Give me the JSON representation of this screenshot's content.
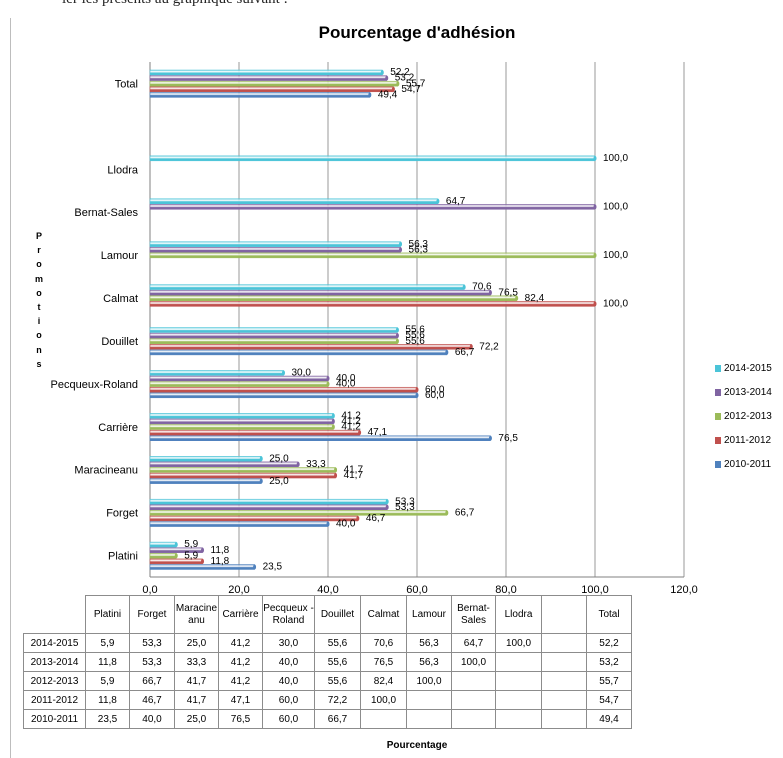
{
  "top_text": "ier les présents au graphique suivant :",
  "chart_data": {
    "type": "bar",
    "orientation": "horizontal",
    "title": "Pourcentage d'adhésion",
    "xlabel": "Pourcentage",
    "ylabel": "Promotions",
    "xlim": [
      0,
      120
    ],
    "x_ticks": [
      "0,0",
      "20,0",
      "40,0",
      "60,0",
      "80,0",
      "100,0",
      "120,0"
    ],
    "grid": true,
    "legend_position": "right",
    "categories": [
      "Total",
      "",
      "Llodra",
      "Bernat-Sales",
      "Lamour",
      "Calmat",
      "Douillet",
      "Pecqueux-Roland",
      "Carrière",
      "Maracineanu",
      "Forget",
      "Platini"
    ],
    "series": [
      {
        "name": "2014-2015",
        "color": "#4bc4d8",
        "values": [
          52.2,
          null,
          100.0,
          64.7,
          56.3,
          70.6,
          55.6,
          30.0,
          41.2,
          25.0,
          53.3,
          5.9
        ],
        "labels": [
          "52,2",
          "",
          "100,0",
          "64,7",
          "56,3",
          "70,6",
          "55,6",
          "30,0",
          "41,2",
          "25,0",
          "53,3",
          "5,9"
        ]
      },
      {
        "name": "2013-2014",
        "color": "#8064a2",
        "values": [
          53.2,
          null,
          null,
          100.0,
          56.3,
          76.5,
          55.6,
          40.0,
          41.2,
          33.3,
          53.3,
          11.8
        ],
        "labels": [
          "53,2",
          "",
          "",
          "100,0",
          "56,3",
          "76,5",
          "55,6",
          "40,0",
          "41,2",
          "33,3",
          "53,3",
          "11,8"
        ]
      },
      {
        "name": "2012-2013",
        "color": "#9bbb59",
        "values": [
          55.7,
          null,
          null,
          null,
          100.0,
          82.4,
          55.6,
          40.0,
          41.2,
          41.7,
          66.7,
          5.9
        ],
        "labels": [
          "55,7",
          "",
          "",
          "",
          "100,0",
          "82,4",
          "55,6",
          "40,0",
          "41,2",
          "41,7",
          "66,7",
          "5,9"
        ]
      },
      {
        "name": "2011-2012",
        "color": "#c0504d",
        "values": [
          54.7,
          null,
          null,
          null,
          null,
          100.0,
          72.2,
          60.0,
          47.1,
          41.7,
          46.7,
          11.8
        ],
        "labels": [
          "54,7",
          "",
          "",
          "",
          "",
          "100,0",
          "72,2",
          "60,0",
          "47,1",
          "41,7",
          "46,7",
          "11,8"
        ]
      },
      {
        "name": "2010-2011",
        "color": "#4f81bd",
        "values": [
          49.4,
          null,
          null,
          null,
          null,
          null,
          66.7,
          60.0,
          76.5,
          25.0,
          40.0,
          23.5
        ],
        "labels": [
          "49,4",
          "",
          "",
          "",
          "",
          "",
          "66,7",
          "60,0",
          "76,5",
          "25,0",
          "40,0",
          "23,5"
        ]
      }
    ]
  },
  "table": {
    "columns": [
      "Platini",
      "Forget",
      "Maracine anu",
      "Carrière",
      "Pecqueux -Roland",
      "Douillet",
      "Calmat",
      "Lamour",
      "Bernat- Sales",
      "Llodra",
      "",
      "Total"
    ],
    "rows": [
      {
        "label": "2014-2015",
        "cells": [
          "5,9",
          "53,3",
          "25,0",
          "41,2",
          "30,0",
          "55,6",
          "70,6",
          "56,3",
          "64,7",
          "100,0",
          "",
          "52,2"
        ]
      },
      {
        "label": "2013-2014",
        "cells": [
          "11,8",
          "53,3",
          "33,3",
          "41,2",
          "40,0",
          "55,6",
          "76,5",
          "56,3",
          "100,0",
          "",
          "",
          "53,2"
        ]
      },
      {
        "label": "2012-2013",
        "cells": [
          "5,9",
          "66,7",
          "41,7",
          "41,2",
          "40,0",
          "55,6",
          "82,4",
          "100,0",
          "",
          "",
          "",
          "55,7"
        ]
      },
      {
        "label": "2011-2012",
        "cells": [
          "11,8",
          "46,7",
          "41,7",
          "47,1",
          "60,0",
          "72,2",
          "100,0",
          "",
          "",
          "",
          "",
          "54,7"
        ]
      },
      {
        "label": "2010-2011",
        "cells": [
          "23,5",
          "40,0",
          "25,0",
          "76,5",
          "60,0",
          "66,7",
          "",
          "",
          "",
          "",
          "",
          "49,4"
        ]
      }
    ]
  }
}
